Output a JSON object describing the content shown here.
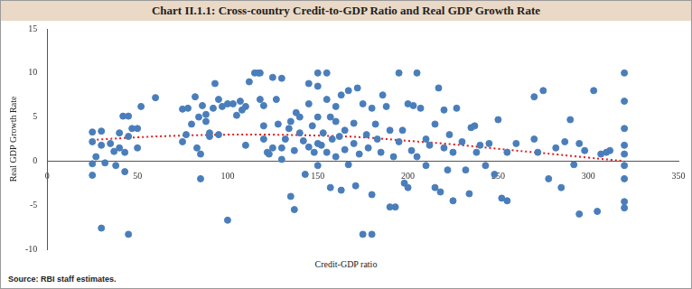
{
  "chart_data": {
    "type": "scatter",
    "title": "Chart II.1.1: Cross-country Credit-to-GDP Ratio and Real GDP Growth Rate",
    "x_label": "Credit-GDP ratio",
    "y_label": "Real GDP Growth Rate",
    "source": "Source: RBI staff estimates.",
    "xlim": [
      0,
      350
    ],
    "xticks": [
      0,
      50,
      100,
      150,
      200,
      250,
      300,
      350
    ],
    "ylim": [
      -10,
      15
    ],
    "yticks": [
      -10,
      -5,
      0,
      5,
      10,
      15
    ],
    "grid": false,
    "series": [
      {
        "type": "scatter",
        "color": "#4a7ebb",
        "marker": "circle",
        "x": [
          25,
          25,
          25,
          25,
          27,
          30,
          30,
          32,
          30,
          35,
          37,
          38,
          40,
          40,
          42,
          43,
          43,
          45,
          45,
          45,
          47,
          50,
          50,
          52,
          60,
          75,
          75,
          77,
          78,
          80,
          82,
          83,
          84,
          85,
          85,
          86,
          88,
          88,
          90,
          90,
          92,
          93,
          95,
          95,
          97,
          100,
          100,
          103,
          105,
          107,
          108,
          110,
          110,
          112,
          115,
          117,
          118,
          118,
          120,
          120,
          120,
          122,
          123,
          125,
          125,
          127,
          128,
          130,
          130,
          130,
          132,
          134,
          135,
          135,
          137,
          137,
          138,
          140,
          140,
          142,
          143,
          145,
          145,
          145,
          147,
          148,
          150,
          150,
          150,
          150,
          150,
          152,
          153,
          155,
          155,
          155,
          157,
          157,
          158,
          160,
          160,
          160,
          162,
          163,
          163,
          165,
          165,
          167,
          167,
          170,
          170,
          171,
          172,
          173,
          175,
          175,
          177,
          178,
          180,
          180,
          180,
          182,
          183,
          185,
          186,
          188,
          190,
          190,
          192,
          193,
          195,
          195,
          197,
          198,
          200,
          200,
          202,
          203,
          205,
          205,
          207,
          210,
          210,
          212,
          215,
          215,
          217,
          218,
          220,
          220,
          222,
          223,
          225,
          225,
          227,
          230,
          232,
          234,
          235,
          237,
          238,
          240,
          243,
          245,
          248,
          250,
          252,
          255,
          255,
          260,
          270,
          270,
          272,
          275,
          278,
          282,
          285,
          287,
          290,
          292,
          295,
          295,
          298,
          303,
          305,
          307,
          310,
          312,
          320,
          320,
          320,
          320,
          320,
          320,
          320,
          320,
          320
        ],
        "values": [
          3.3,
          2.2,
          -0.3,
          -1.6,
          0.5,
          3.4,
          1.8,
          -0.2,
          -7.6,
          2.0,
          1.1,
          -0.5,
          1.5,
          3.2,
          5.1,
          -1.2,
          1.0,
          2.8,
          5.1,
          -8.3,
          3.7,
          3.7,
          1.5,
          6.2,
          7.2,
          5.9,
          2.2,
          3.0,
          6.0,
          4.2,
          7.3,
          1.5,
          5.0,
          -2.0,
          0.8,
          6.3,
          5.3,
          4.5,
          3.2,
          2.8,
          6.0,
          8.8,
          7.0,
          3.0,
          6.2,
          -6.7,
          6.5,
          6.5,
          5.2,
          6.8,
          5.8,
          1.8,
          6.2,
          9.0,
          10.0,
          10.0,
          10.0,
          7.0,
          6.3,
          4.0,
          2.5,
          1.0,
          0.8,
          9.5,
          1.5,
          7.0,
          4.2,
          9.4,
          0.2,
          1.5,
          2.5,
          3.7,
          -4.0,
          4.5,
          1.2,
          -5.5,
          5.5,
          5.0,
          3.2,
          2.3,
          -1.5,
          8.8,
          6.5,
          1.6,
          4.0,
          1.0,
          10.0,
          8.5,
          5.0,
          2.0,
          -0.5,
          1.8,
          3.2,
          10.0,
          7.0,
          1.0,
          5.0,
          -3.0,
          2.5,
          4.5,
          0.5,
          6.2,
          2.8,
          7.5,
          -3.3,
          3.5,
          1.3,
          8.0,
          -0.4,
          4.3,
          2.0,
          -2.8,
          8.3,
          0.8,
          6.5,
          -8.3,
          3.0,
          1.5,
          6.0,
          -3.8,
          -8.3,
          4.2,
          2.5,
          1.0,
          7.5,
          6.2,
          -5.2,
          3.5,
          0.5,
          -5.2,
          10.0,
          2.2,
          3.5,
          -2.5,
          -3.0,
          6.5,
          1.2,
          6.3,
          10.0,
          0.5,
          6.0,
          2.5,
          -0.5,
          1.8,
          4.2,
          -3.0,
          8.3,
          -3.5,
          1.5,
          5.8,
          -1.0,
          3.0,
          -4.5,
          1.0,
          6.0,
          2.2,
          -1.0,
          -3.7,
          3.8,
          4.0,
          1.0,
          1.8,
          -0.5,
          2.0,
          -1.5,
          4.7,
          -4.2,
          -4.5,
          1.0,
          2.0,
          7.3,
          2.5,
          1.0,
          8.0,
          -2.0,
          1.5,
          -3.0,
          2.2,
          4.7,
          -0.4,
          -6.0,
          2.0,
          1.2,
          8.0,
          -5.7,
          0.8,
          1.0,
          1.2,
          10.0,
          6.8,
          3.7,
          1.8,
          0.8,
          -0.5,
          -2.0,
          -4.6,
          -5.3
        ]
      },
      {
        "type": "line",
        "color": "#e31a1c",
        "line_style": "dotted",
        "x": [
          25,
          50,
          75,
          100,
          125,
          150,
          175,
          200,
          225,
          250,
          275,
          300,
          320
        ],
        "values": [
          2.4,
          2.7,
          2.9,
          3.0,
          3.0,
          2.9,
          2.7,
          2.3,
          1.9,
          1.4,
          0.9,
          0.4,
          0.0
        ]
      }
    ]
  }
}
